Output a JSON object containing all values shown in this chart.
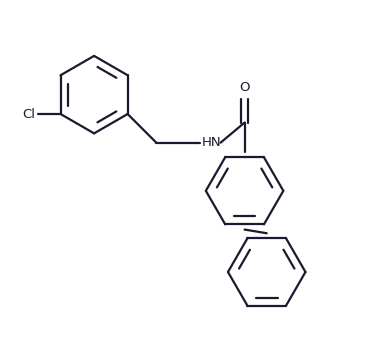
{
  "bg_color": "#ffffff",
  "line_color": "#1a1a2e",
  "line_width": 1.6,
  "font_size": 9.5,
  "figsize": [
    3.69,
    3.59
  ],
  "dpi": 100,
  "xlim": [
    0,
    10
  ],
  "ylim": [
    0,
    9.7
  ]
}
